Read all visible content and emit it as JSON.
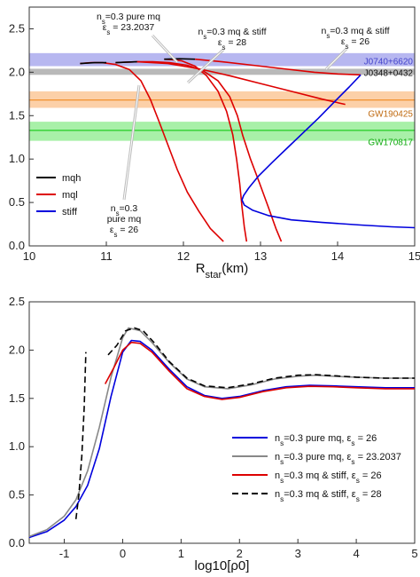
{
  "chart_data": [
    {
      "type": "line",
      "xlabel": "R_star(km)",
      "xlim": [
        10,
        15
      ],
      "ylim": [
        0,
        2.75
      ],
      "xticks": [
        10,
        11,
        12,
        13,
        14,
        15
      ],
      "yticks": [
        0.0,
        0.5,
        1.0,
        1.5,
        2.0,
        2.5
      ],
      "grid": false,
      "legend_position": "bottom-left",
      "legend": [
        {
          "name": "mqh",
          "color": "#000000"
        },
        {
          "name": "mql",
          "color": "#dd0000"
        },
        {
          "name": "stiff",
          "color": "#0000dd"
        }
      ],
      "bands": [
        {
          "label": "J0740+6620",
          "y0": 2.07,
          "y1": 2.22,
          "fill": "#b7b7f0",
          "label_color": "#4444cc",
          "line": null
        },
        {
          "label": "J0348+0432",
          "y0": 1.97,
          "y1": 2.04,
          "fill": "#b9b9b9",
          "label_color": "#111111",
          "line": null
        },
        {
          "label": "GW190425",
          "y0": 1.59,
          "y1": 1.78,
          "fill": "#fcd0a8",
          "label_color": "#c06a10",
          "line": 1.68,
          "line_color": "#f08a20"
        },
        {
          "label": "GW170817",
          "y0": 1.21,
          "y1": 1.43,
          "fill": "#a8f0a8",
          "label_color": "#11aa11",
          "line": 1.33,
          "line_color": "#22cc22"
        }
      ],
      "series": [
        {
          "color": "#dd0000",
          "x": [
            12.52,
            12.35,
            12.2,
            12.05,
            11.92,
            11.8,
            11.68,
            11.57,
            11.45,
            11.3,
            11.12,
            10.95,
            10.8,
            10.66
          ],
          "y": [
            0.05,
            0.2,
            0.4,
            0.62,
            0.88,
            1.16,
            1.44,
            1.69,
            1.9,
            2.03,
            2.09,
            2.11,
            2.11,
            2.1
          ]
        },
        {
          "color": "#dd0000",
          "x": [
            13.27,
            13.2,
            13.1,
            12.98,
            12.87,
            12.77,
            12.7,
            12.6,
            12.45,
            12.25,
            12.05,
            11.82,
            11.6,
            11.4,
            11.25,
            11.12
          ],
          "y": [
            0.05,
            0.2,
            0.45,
            0.74,
            1.0,
            1.27,
            1.5,
            1.72,
            1.9,
            2.02,
            2.08,
            2.11,
            2.12,
            2.12,
            2.115,
            2.11
          ]
        },
        {
          "color": "#dd0000",
          "x": [
            12.82,
            12.79,
            12.76,
            12.73,
            12.69,
            12.64,
            12.56,
            12.45,
            12.3,
            12.15,
            11.98,
            11.85,
            11.75
          ],
          "y": [
            0.05,
            0.22,
            0.45,
            0.72,
            1.0,
            1.28,
            1.55,
            1.78,
            1.96,
            2.07,
            2.13,
            2.145,
            2.15
          ]
        },
        {
          "color": "#000000",
          "x": [
            10.66,
            10.85,
            11.0
          ],
          "y": [
            2.1,
            2.11,
            2.11
          ]
        },
        {
          "color": "#000000",
          "x": [
            11.12,
            11.25,
            11.4
          ],
          "y": [
            2.11,
            2.115,
            2.12
          ]
        },
        {
          "color": "#000000",
          "x": [
            11.75,
            11.95,
            12.15
          ],
          "y": [
            2.15,
            2.155,
            2.15
          ]
        },
        {
          "color": "#dd0000",
          "x": [
            12.15,
            12.5,
            12.9,
            13.3,
            13.7,
            14.0,
            14.3
          ],
          "y": [
            2.15,
            2.12,
            2.08,
            2.04,
            2.0,
            1.98,
            1.97
          ]
        },
        {
          "color": "#dd0000",
          "x": [
            11.4,
            11.8,
            12.2,
            12.6,
            13.0,
            13.4,
            13.8,
            14.1
          ],
          "y": [
            2.12,
            2.1,
            2.04,
            1.96,
            1.87,
            1.78,
            1.69,
            1.63
          ]
        },
        {
          "color": "#0000dd",
          "x": [
            14.3,
            14.15,
            13.95,
            13.75,
            13.55,
            13.35,
            13.15,
            12.97,
            12.85,
            12.78,
            12.76,
            12.79,
            12.9,
            13.1,
            13.4,
            13.8,
            14.3,
            14.7,
            15.0
          ],
          "y": [
            1.97,
            1.83,
            1.65,
            1.47,
            1.3,
            1.13,
            0.96,
            0.8,
            0.67,
            0.58,
            0.53,
            0.47,
            0.41,
            0.35,
            0.3,
            0.27,
            0.24,
            0.22,
            0.21
          ]
        }
      ]
    },
    {
      "type": "line",
      "xlabel": "log10[ρ0]",
      "xlim": [
        -1.6,
        5
      ],
      "ylim": [
        0,
        2.5
      ],
      "xticks": [
        -1,
        0,
        1,
        2,
        3,
        4,
        5
      ],
      "yticks": [
        0.0,
        0.5,
        1.0,
        1.5,
        2.0,
        2.5
      ],
      "grid": false,
      "legend_position": "bottom-right",
      "series": [
        {
          "name": "n_s=0.3 pure mq, ε_s = 26",
          "color": "#0000dd",
          "dash": "",
          "x": [
            -1.6,
            -1.3,
            -1.0,
            -0.8,
            -0.6,
            -0.4,
            -0.2,
            0.0,
            0.15,
            0.3,
            0.5,
            0.8,
            1.1,
            1.4,
            1.7,
            2.0,
            2.4,
            2.8,
            3.2,
            3.6,
            4.0,
            4.5,
            5.0
          ],
          "y": [
            0.06,
            0.12,
            0.24,
            0.38,
            0.6,
            0.98,
            1.52,
            1.98,
            2.1,
            2.09,
            2.0,
            1.8,
            1.62,
            1.53,
            1.5,
            1.52,
            1.58,
            1.62,
            1.635,
            1.63,
            1.62,
            1.61,
            1.61
          ]
        },
        {
          "name": "n_s=0.3 pure mq, ε_s = 23.2037",
          "color": "#888888",
          "dash": "",
          "x": [
            -1.6,
            -1.3,
            -1.0,
            -0.8,
            -0.6,
            -0.4,
            -0.2,
            0.0,
            0.1,
            0.3,
            0.5,
            0.8,
            1.1,
            1.4,
            1.8,
            2.2,
            2.6,
            3.0,
            3.3,
            3.6,
            4.0,
            4.5,
            5.0
          ],
          "y": [
            0.07,
            0.14,
            0.28,
            0.45,
            0.75,
            1.2,
            1.72,
            2.13,
            2.23,
            2.2,
            2.08,
            1.87,
            1.7,
            1.62,
            1.6,
            1.64,
            1.7,
            1.73,
            1.74,
            1.73,
            1.72,
            1.71,
            1.71
          ]
        },
        {
          "name": "n_s=0.3 mq & stiff, ε_s = 26",
          "color": "#dd0000",
          "dash": "",
          "x": [
            -0.3,
            -0.15,
            0.0,
            0.15,
            0.3,
            0.5,
            0.8,
            1.1,
            1.4,
            1.7,
            2.0,
            2.4,
            2.8,
            3.2,
            3.6,
            4.0,
            4.5,
            5.0
          ],
          "y": [
            1.65,
            1.82,
            2.0,
            2.08,
            2.07,
            1.98,
            1.78,
            1.6,
            1.52,
            1.49,
            1.51,
            1.57,
            1.61,
            1.625,
            1.62,
            1.61,
            1.6,
            1.6
          ]
        },
        {
          "name": "n_s=0.3 mq & stiff, ε_s = 28",
          "color": "#000000",
          "dash": "7,4",
          "x": [
            -0.8,
            -0.75,
            -0.7,
            -0.66,
            -0.63
          ],
          "y": [
            0.25,
            0.5,
            0.9,
            1.4,
            1.98
          ]
        },
        {
          "name": "",
          "color": "#000000",
          "dash": "7,4",
          "x": [
            -0.25,
            -0.1,
            0.05,
            0.2,
            0.35,
            0.55,
            0.8,
            1.1,
            1.4,
            1.8,
            2.2,
            2.6,
            3.0,
            3.3,
            3.6,
            4.0,
            4.5,
            5.0
          ],
          "y": [
            1.95,
            2.05,
            2.2,
            2.23,
            2.2,
            2.07,
            1.88,
            1.71,
            1.63,
            1.61,
            1.65,
            1.71,
            1.74,
            1.745,
            1.735,
            1.72,
            1.71,
            1.71
          ]
        }
      ]
    }
  ],
  "annotations": [
    {
      "line1": "n_s=0.3 pure mq",
      "line2": "ε_s = 23.2037"
    },
    {
      "line1": "n_s=0.3 mq & stiff",
      "line2": "ε_s = 28"
    },
    {
      "line1": "n_s=0.3 mq & stiff",
      "line2": "ε_s = 26"
    },
    {
      "line1": "n_s=0.3",
      "line2": "pure mq",
      "line3": "ε_s = 26"
    }
  ]
}
